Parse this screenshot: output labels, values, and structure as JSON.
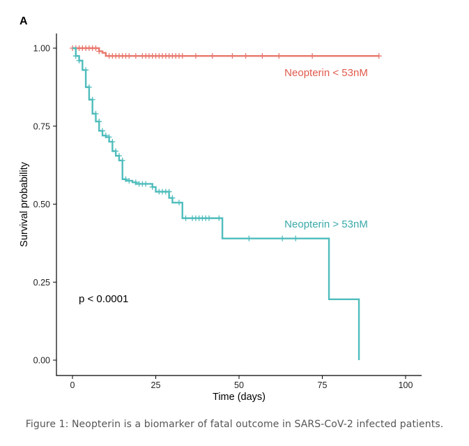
{
  "panel_label": "A",
  "caption": "Figure 1: Neopterin is a biomarker of fatal outcome in SARS-CoV-2 infected patients.",
  "chart_data": {
    "type": "line",
    "subtype": "kaplan-meier",
    "xlabel": "Time (days)",
    "ylabel": "Survival probability",
    "xlim": [
      -5,
      105
    ],
    "ylim": [
      -0.05,
      1.05
    ],
    "xticks": [
      0,
      25,
      50,
      75,
      100
    ],
    "yticks": [
      0.0,
      0.25,
      0.5,
      0.75,
      1.0
    ],
    "xtick_labels": [
      "0",
      "25",
      "50",
      "75",
      "100"
    ],
    "ytick_labels": [
      "0.00",
      "0.25",
      "0.50",
      "0.75",
      "1.00"
    ],
    "grid": false,
    "annotation": "p < 0.0001",
    "series": [
      {
        "name": "Neopterin < 53nM",
        "color": "#e8776c",
        "steps": [
          [
            0,
            1.0
          ],
          [
            8,
            0.99
          ],
          [
            9,
            0.985
          ],
          [
            10,
            0.975
          ],
          [
            92,
            0.975
          ]
        ],
        "censored": [
          [
            0,
            1.0
          ],
          [
            1,
            1.0
          ],
          [
            2,
            1.0
          ],
          [
            3,
            1.0
          ],
          [
            4,
            1.0
          ],
          [
            5,
            1.0
          ],
          [
            6,
            1.0
          ],
          [
            7,
            1.0
          ],
          [
            8,
            0.99
          ],
          [
            11,
            0.975
          ],
          [
            12,
            0.975
          ],
          [
            13,
            0.975
          ],
          [
            14,
            0.975
          ],
          [
            15,
            0.975
          ],
          [
            16,
            0.975
          ],
          [
            17,
            0.975
          ],
          [
            19,
            0.975
          ],
          [
            21,
            0.975
          ],
          [
            22,
            0.975
          ],
          [
            23,
            0.975
          ],
          [
            24,
            0.975
          ],
          [
            25,
            0.975
          ],
          [
            26,
            0.975
          ],
          [
            27,
            0.975
          ],
          [
            28,
            0.975
          ],
          [
            29,
            0.975
          ],
          [
            30,
            0.975
          ],
          [
            31,
            0.975
          ],
          [
            32,
            0.975
          ],
          [
            33,
            0.975
          ],
          [
            37,
            0.975
          ],
          [
            42,
            0.975
          ],
          [
            48,
            0.975
          ],
          [
            52,
            0.975
          ],
          [
            57,
            0.975
          ],
          [
            62,
            0.975
          ],
          [
            72,
            0.975
          ],
          [
            92,
            0.975
          ]
        ]
      },
      {
        "name": "Neopterin > 53nM",
        "color": "#4fbcbc",
        "steps": [
          [
            0,
            1.0
          ],
          [
            1,
            0.975
          ],
          [
            2,
            0.96
          ],
          [
            3,
            0.93
          ],
          [
            4,
            0.875
          ],
          [
            5,
            0.835
          ],
          [
            6,
            0.79
          ],
          [
            7,
            0.765
          ],
          [
            8,
            0.735
          ],
          [
            9,
            0.72
          ],
          [
            10,
            0.715
          ],
          [
            11,
            0.7
          ],
          [
            12,
            0.67
          ],
          [
            13,
            0.655
          ],
          [
            14,
            0.64
          ],
          [
            15,
            0.58
          ],
          [
            16,
            0.575
          ],
          [
            18,
            0.57
          ],
          [
            19,
            0.565
          ],
          [
            24,
            0.555
          ],
          [
            25,
            0.54
          ],
          [
            29,
            0.52
          ],
          [
            30,
            0.505
          ],
          [
            33,
            0.455
          ],
          [
            45,
            0.39
          ],
          [
            77,
            0.195
          ],
          [
            86,
            0.0
          ]
        ],
        "censored": [
          [
            1,
            0.975
          ],
          [
            2,
            0.96
          ],
          [
            4,
            0.93
          ],
          [
            5,
            0.875
          ],
          [
            6,
            0.835
          ],
          [
            7,
            0.79
          ],
          [
            8,
            0.765
          ],
          [
            9,
            0.735
          ],
          [
            10,
            0.72
          ],
          [
            11,
            0.715
          ],
          [
            12,
            0.7
          ],
          [
            13,
            0.67
          ],
          [
            14,
            0.655
          ],
          [
            15,
            0.64
          ],
          [
            16,
            0.58
          ],
          [
            17,
            0.575
          ],
          [
            19,
            0.57
          ],
          [
            20,
            0.565
          ],
          [
            21,
            0.565
          ],
          [
            22,
            0.565
          ],
          [
            24,
            0.555
          ],
          [
            26,
            0.54
          ],
          [
            27,
            0.54
          ],
          [
            28,
            0.54
          ],
          [
            29,
            0.54
          ],
          [
            30,
            0.52
          ],
          [
            32,
            0.505
          ],
          [
            34,
            0.455
          ],
          [
            36,
            0.455
          ],
          [
            37,
            0.455
          ],
          [
            38,
            0.455
          ],
          [
            39,
            0.455
          ],
          [
            40,
            0.455
          ],
          [
            41,
            0.455
          ],
          [
            44,
            0.455
          ],
          [
            53,
            0.39
          ],
          [
            63,
            0.39
          ],
          [
            67,
            0.39
          ]
        ]
      }
    ]
  }
}
